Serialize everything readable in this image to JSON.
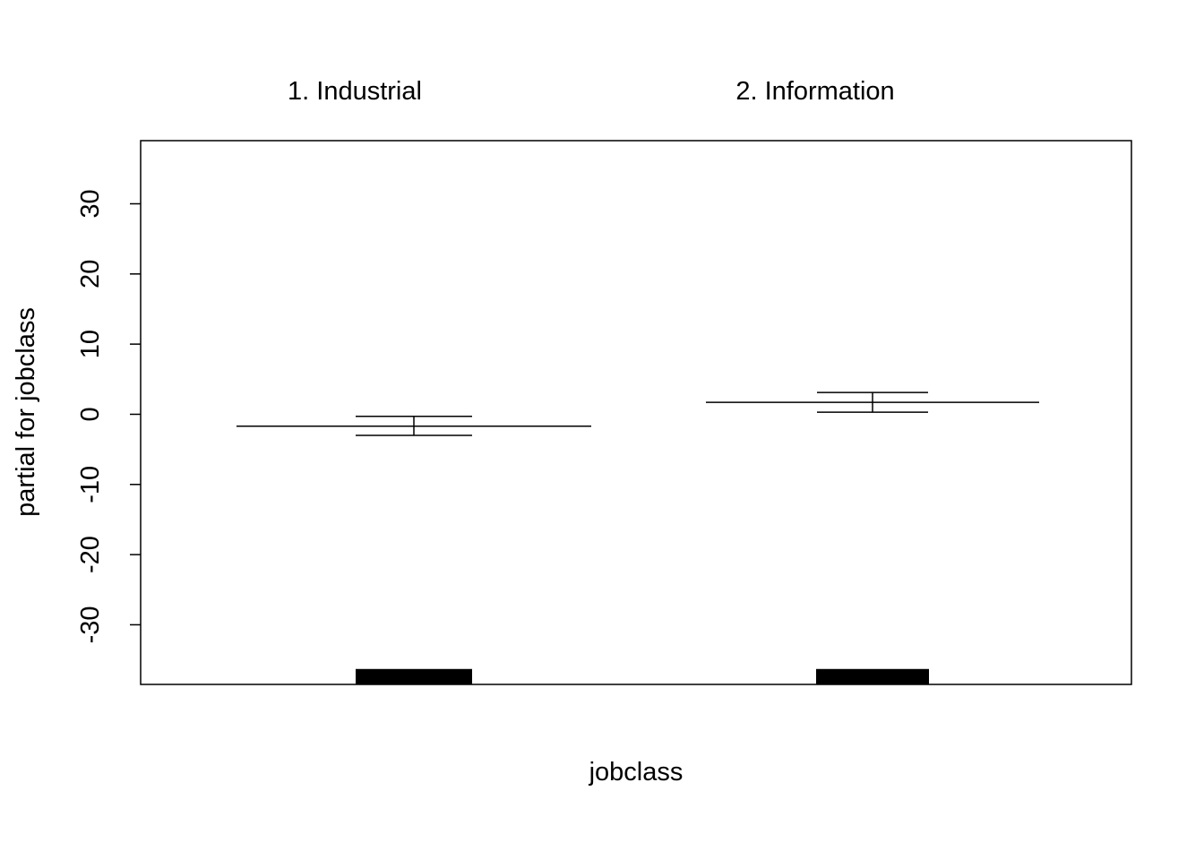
{
  "chart_data": {
    "type": "bar",
    "title": "",
    "xlabel": "jobclass",
    "ylabel": "partial for jobclass",
    "ylim": [
      -38.5,
      39
    ],
    "y_ticks": [
      -30,
      -20,
      -10,
      0,
      10,
      20,
      30
    ],
    "y_tick_labels": [
      "-30",
      "-20",
      "-10",
      "0",
      "10",
      "20",
      "30"
    ],
    "grid": false,
    "legend": "none",
    "categories": [
      "1. Industrial",
      "2. Information"
    ],
    "series": [
      {
        "values": [
          -1.7,
          1.7
        ],
        "upper": [
          -0.3,
          3.1
        ],
        "lower": [
          -3.0,
          0.3
        ]
      }
    ],
    "rug_level": -36.3,
    "colors": {
      "line": "#000000",
      "rug": "#000000",
      "background": "#ffffff"
    }
  }
}
